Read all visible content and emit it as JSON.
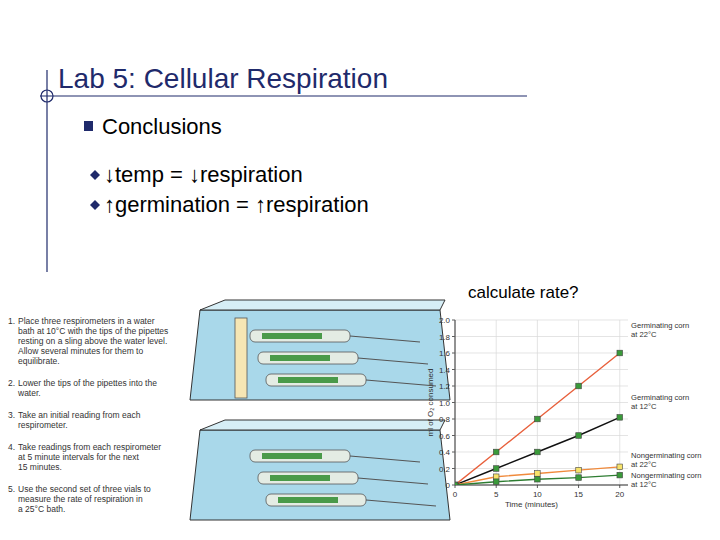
{
  "slide": {
    "title": "Lab 5: Cellular Respiration",
    "heading": "Conclusions",
    "bullets": [
      "↓temp = ↓respiration",
      "↑germination = ↑respiration"
    ],
    "note": "calculate rate?",
    "steps": [
      {
        "number": "1.",
        "lines": [
          "Place three respirometers in a water",
          "bath at 10°C with the tips of the pipettes",
          "resting on a sling above the water level.",
          "Allow several minutes for them to",
          "equilibrate."
        ]
      },
      {
        "number": "2.",
        "lines": [
          "Lower the tips of the pipettes into the",
          "water."
        ]
      },
      {
        "number": "3.",
        "lines": [
          "Take an initial reading from each",
          "respirometer."
        ]
      },
      {
        "number": "4.",
        "lines": [
          "Take readings from each respirometer",
          "at 5 minute intervals for the next",
          "15 minutes."
        ]
      },
      {
        "number": "5.",
        "lines": [
          "Use the second set of three vials to",
          "measure the rate of respiration in",
          "a 25°C bath."
        ]
      }
    ]
  },
  "chart_data": {
    "type": "line",
    "x_label": "Time (minutes)",
    "y_label": "ml of O₂ consumed",
    "x": [
      0,
      5,
      10,
      15,
      20
    ],
    "xlim": [
      0,
      21
    ],
    "xticks": [
      0,
      5,
      10,
      15,
      20
    ],
    "ylim": [
      0,
      2.0
    ],
    "yticks": [
      0,
      {
        "value": 0.2,
        "label": "0.2"
      },
      {
        "value": 0.4,
        "label": "0.4"
      },
      {
        "value": 0.6,
        "label": "0.6"
      },
      {
        "value": 0.8,
        "label": "0.8"
      },
      {
        "value": 1.0,
        "label": "1.0"
      },
      {
        "value": 1.2,
        "label": "1.2"
      },
      {
        "value": 1.4,
        "label": "1.4"
      },
      {
        "value": 1.6,
        "label": "1.6"
      },
      {
        "value": 1.8,
        "label": "1.8"
      },
      {
        "value": 2.0,
        "label": "2.0"
      }
    ],
    "grid": true,
    "marker": "square",
    "series": [
      {
        "name": "Germinating corn at 22°C",
        "color": "#e8603c",
        "values": [
          0,
          0.4,
          0.8,
          1.2,
          1.6
        ]
      },
      {
        "name": "Germinating corn at 12°C",
        "color": "#111111",
        "values": [
          0,
          0.2,
          0.4,
          0.6,
          0.82
        ]
      },
      {
        "name": "Nongerminating corn at 22°C",
        "color": "#f08a3c",
        "values": [
          0,
          0.1,
          0.14,
          0.18,
          0.22
        ]
      },
      {
        "name": "Nongerminating corn at 12°C",
        "color": "#2e7d32",
        "values": [
          0,
          0.04,
          0.07,
          0.09,
          0.12
        ]
      }
    ]
  }
}
